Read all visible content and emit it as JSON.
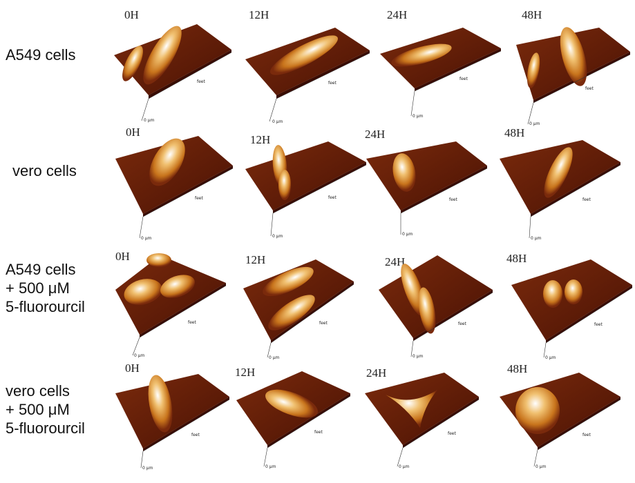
{
  "rows": [
    {
      "label": "A549 cells",
      "times": [
        "0H",
        "12H",
        "24H",
        "48H"
      ]
    },
    {
      "label": "vero cells",
      "times": [
        "0H",
        "12H",
        "24H",
        "48H"
      ]
    },
    {
      "label": "A549 cells\n+ 500 μM\n5-fluorourcil",
      "times": [
        "0H",
        "12H",
        "24H",
        "48H"
      ]
    },
    {
      "label": "vero cells\n+ 500 μM\n5-fluorourcil",
      "times": [
        "0H",
        "12H",
        "24H",
        "48H"
      ]
    }
  ],
  "axis_units": {
    "zero": "0 μm",
    "feet": "feet"
  },
  "colors": {
    "substrate": "#6b1d08",
    "substrate_dark": "#3a0c02",
    "cell_mid": "#d9902a",
    "cell_high": "#ffffff"
  }
}
